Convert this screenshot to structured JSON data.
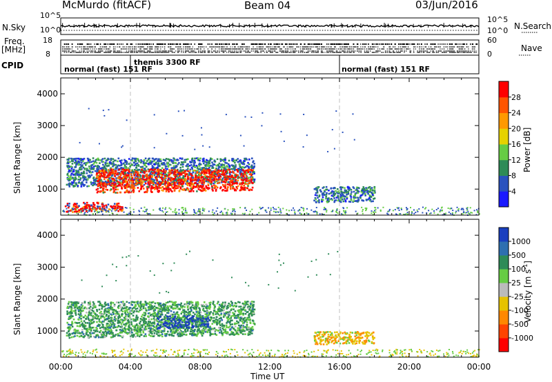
{
  "header": {
    "station": "McMurdo (fitACF)",
    "beam": "Beam 04",
    "date": "03/Jun/2016"
  },
  "left_labels": {
    "nsky": "N.Sky",
    "freq": "Freq.",
    "freq_unit": "[MHz]",
    "cpid": "CPID"
  },
  "right_labels": {
    "nsearch": "N.Search",
    "nave": "Nave"
  },
  "strip_ticks": {
    "noise_left_top": "10^5",
    "noise_left_bottom": "10^0",
    "noise_right_top": "10^5",
    "noise_right_bottom": "10^0",
    "freq_left_top": "18",
    "freq_left_bottom": "8",
    "nave_right_top": "60",
    "nave_right_bottom": "0"
  },
  "cpid_segments": [
    {
      "label": "normal (fast) 151 RF",
      "start_hour": 0
    },
    {
      "label": "themis 3300 RF",
      "start_hour": 4
    },
    {
      "label": "normal (fast) 151 RF",
      "start_hour": 16
    }
  ],
  "chart_data": [
    {
      "type": "heatmap",
      "title": "",
      "xlabel": "",
      "ylabel": "Slant Range [km]",
      "x": [
        "00:00",
        "04:00",
        "08:00",
        "12:00",
        "16:00",
        "20:00",
        "00:00"
      ],
      "xlim": [
        0,
        24
      ],
      "ylim": [
        180,
        4500
      ],
      "yticks": [
        1000,
        2000,
        3000,
        4000
      ],
      "colorbar_label": "Power [dB]",
      "colorbar_ticks": [
        "4",
        "8",
        "12",
        "16",
        "20",
        "24",
        "28"
      ],
      "colorbar_colors": [
        "#1a1aff",
        "#2a52be",
        "#2e8b57",
        "#66cc44",
        "#e6d200",
        "#ff9900",
        "#ff5500",
        "#ff0000"
      ],
      "regions": [
        {
          "t0": 0.3,
          "t1": 11.1,
          "r0": 1100,
          "r1": 2000,
          "level": "low"
        },
        {
          "t0": 2.0,
          "t1": 11.0,
          "r0": 900,
          "r1": 1650,
          "level": "high"
        },
        {
          "t0": 0.2,
          "t1": 3.5,
          "r0": 300,
          "r1": 600,
          "level": "mid"
        },
        {
          "t0": 14.5,
          "t1": 18.0,
          "r0": 600,
          "r1": 1100,
          "level": "low"
        }
      ]
    },
    {
      "type": "heatmap",
      "title": "",
      "xlabel": "Time UT",
      "ylabel": "Slant Range [km]",
      "x": [
        "00:00",
        "04:00",
        "08:00",
        "12:00",
        "16:00",
        "20:00",
        "00:00"
      ],
      "xlim": [
        0,
        24
      ],
      "ylim": [
        180,
        4500
      ],
      "yticks": [
        1000,
        2000,
        3000,
        4000
      ],
      "colorbar_label": "Velocity [m s^-1]",
      "colorbar_ticks": [
        "1000",
        "500",
        "100",
        "25",
        "-25",
        "-100",
        "-500",
        "-1000"
      ],
      "colorbar_colors": [
        "#1a3fbf",
        "#2e6fb0",
        "#2e8b57",
        "#66cc44",
        "#bbbbbb",
        "#e6c200",
        "#ff8800",
        "#ff4400",
        "#ff0000"
      ],
      "regions": [
        {
          "t0": 0.3,
          "t1": 11.1,
          "r0": 800,
          "r1": 1950,
          "level": "green"
        },
        {
          "t0": 5.5,
          "t1": 8.5,
          "r0": 1100,
          "r1": 1500,
          "level": "blue"
        },
        {
          "t0": 14.5,
          "t1": 18.0,
          "r0": 600,
          "r1": 1000,
          "level": "orange"
        }
      ]
    }
  ]
}
